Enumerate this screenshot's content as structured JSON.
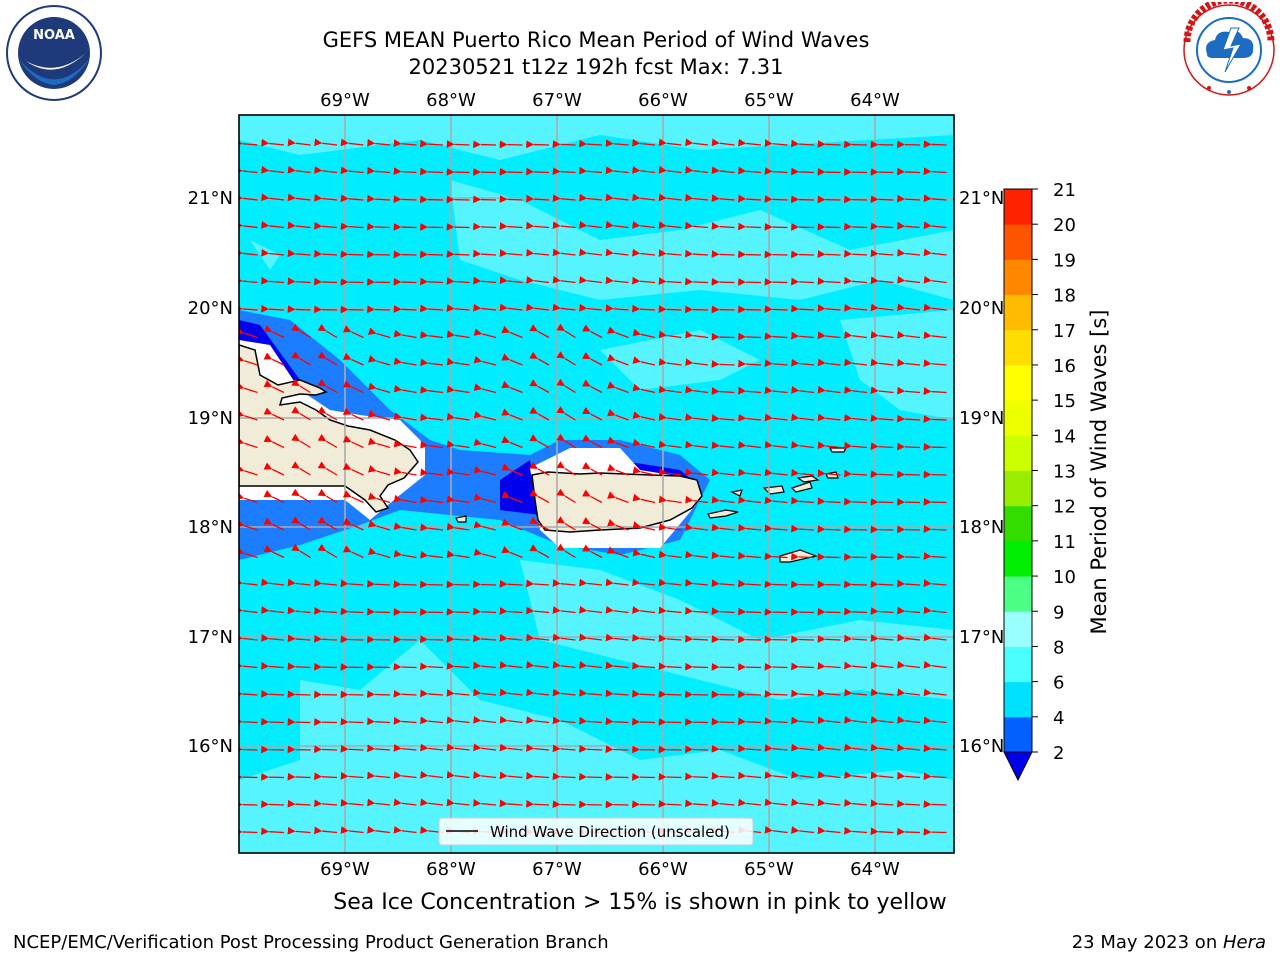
{
  "header": {
    "title_line1": "GEFS MEAN Puerto Rico Mean Period of Wind Waves",
    "title_line2": "20230521 t12z 192h fcst   Max: 7.31"
  },
  "logos": {
    "left": {
      "name": "noaa-logo",
      "text": "NOAA",
      "ring_text": "NATIONAL OCEANIC AND ATMOSPHERIC ADMINISTRATION · U.S. DEPARTMENT OF COMMERCE"
    },
    "right": {
      "name": "nws-logo",
      "ring_text": "NATIONAL WEATHER SERVICE"
    }
  },
  "map": {
    "lon_labels": [
      "69°W",
      "68°W",
      "67°W",
      "66°W",
      "65°W",
      "64°W"
    ],
    "lat_labels": [
      "21°N",
      "20°N",
      "19°N",
      "18°N",
      "17°N",
      "16°N"
    ],
    "legend_label": "Wind Wave Direction (unscaled)"
  },
  "colorbar": {
    "label": "Mean Period of Wind Waves [s]",
    "ticks": [
      "2",
      "4",
      "6",
      "8",
      "9",
      "10",
      "11",
      "12",
      "13",
      "14",
      "15",
      "16",
      "17",
      "18",
      "19",
      "20",
      "21"
    ],
    "colors": [
      "#0061ff",
      "#00e1ff",
      "#4cffff",
      "#99ffff",
      "#4cff85",
      "#00ee00",
      "#33dd00",
      "#99ee00",
      "#ccff00",
      "#eeff00",
      "#ffff00",
      "#ffdd00",
      "#ffbb00",
      "#ff8800",
      "#ff5500",
      "#ff2200"
    ],
    "under_color": "#0000ee"
  },
  "footer": {
    "sea_ice_note": "Sea Ice Concentration > 15% is shown in pink to yellow",
    "credit_left": "NCEP/EMC/Verification Post Processing Product Generation Branch",
    "credit_date": "23 May 2023 on ",
    "credit_host": "Hera"
  }
}
